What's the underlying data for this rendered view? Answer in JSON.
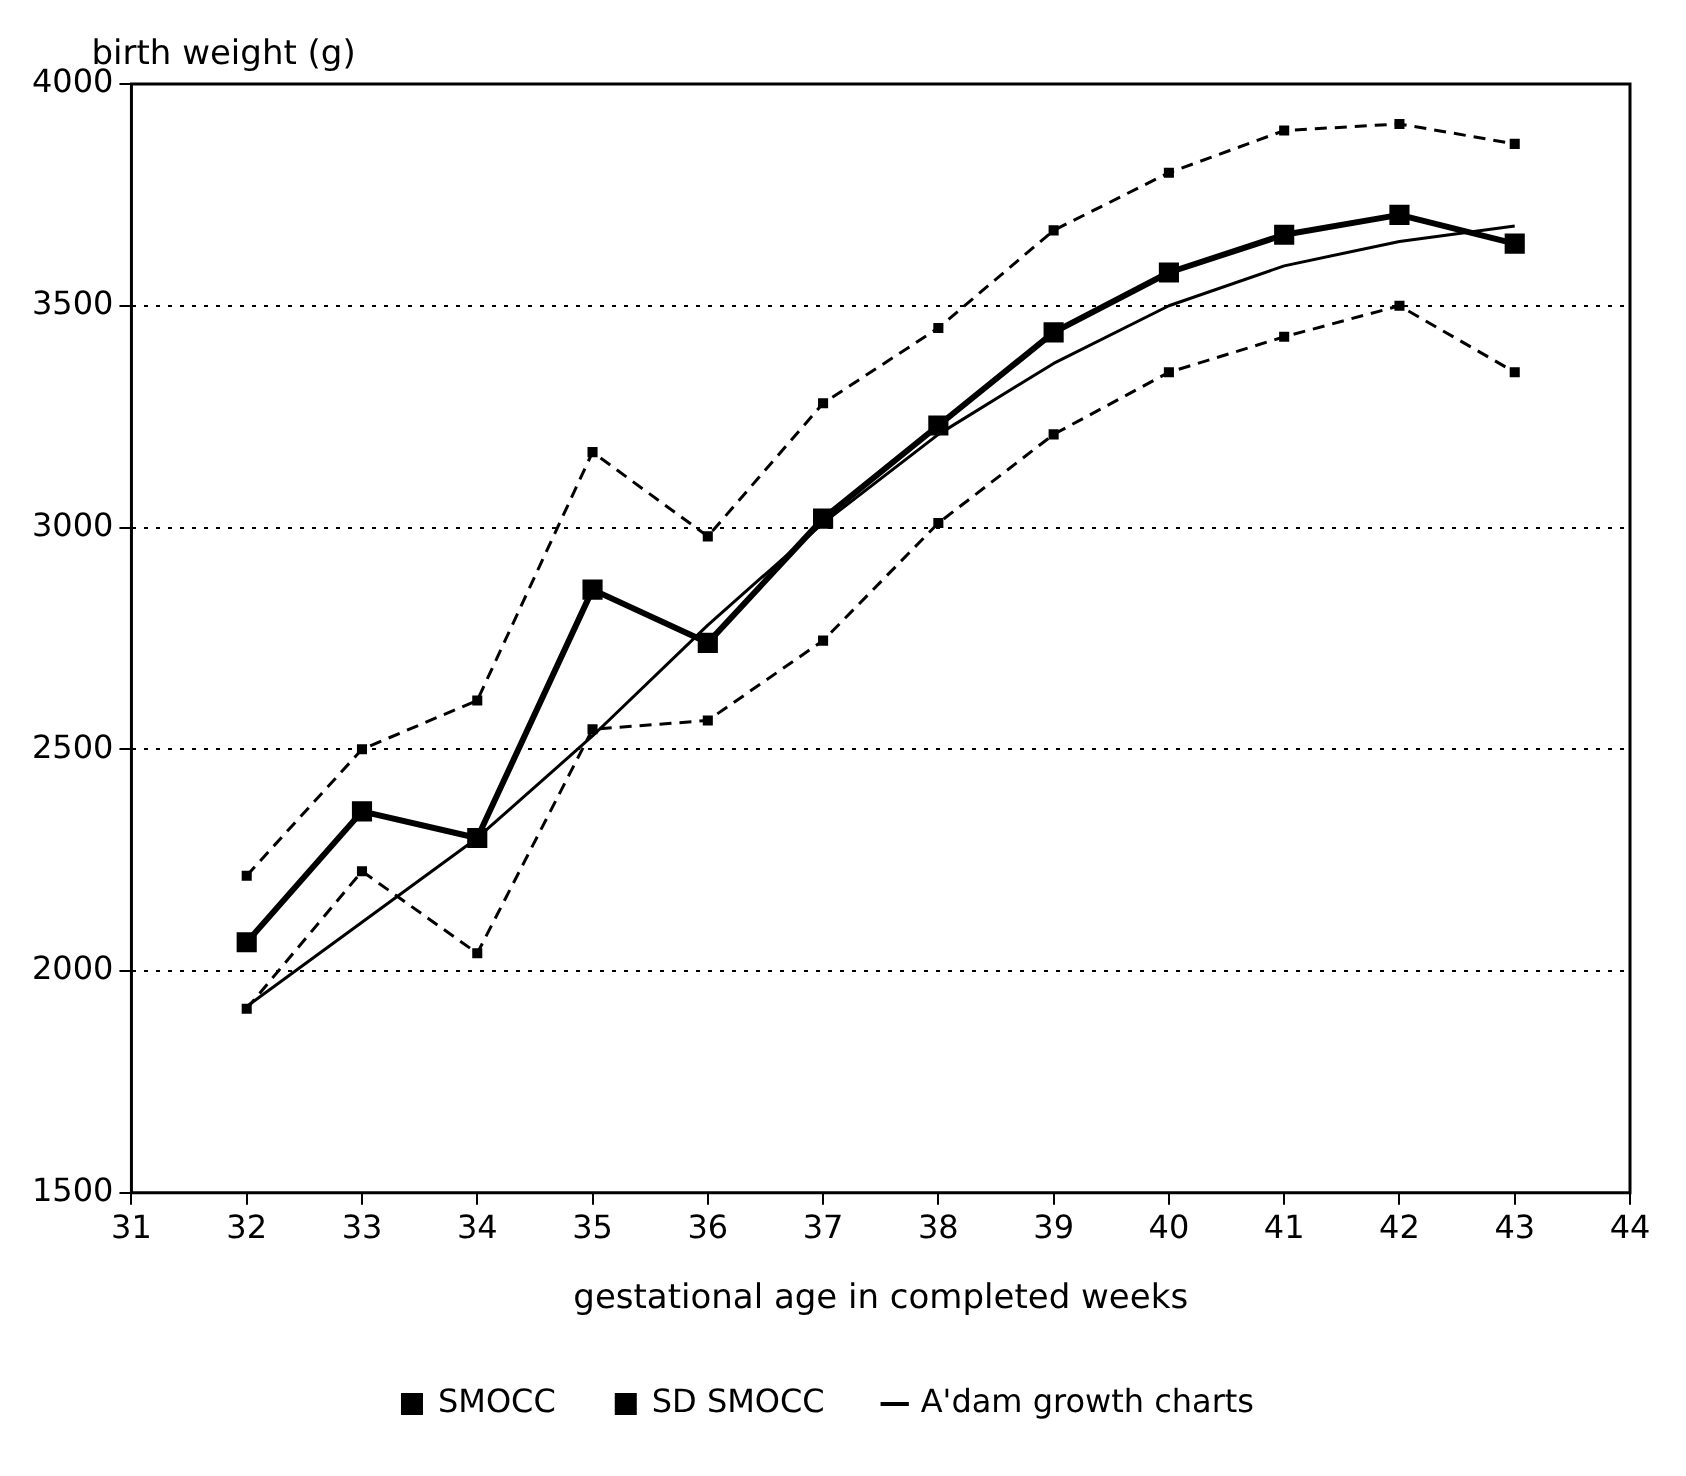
{
  "chart_data": {
    "type": "line",
    "ylabel": "birth weight (g)",
    "xlabel": "gestational age in completed weeks",
    "x": [
      32,
      33,
      34,
      35,
      36,
      37,
      38,
      39,
      40,
      41,
      42,
      43
    ],
    "xlim": [
      31,
      44
    ],
    "xticks": [
      31,
      32,
      33,
      34,
      35,
      36,
      37,
      38,
      39,
      40,
      41,
      42,
      43,
      44
    ],
    "ylim": [
      1500,
      4000
    ],
    "yticks": [
      1500,
      2000,
      2500,
      3000,
      3500,
      4000
    ],
    "grid": "y",
    "legend": "bottom",
    "series": [
      {
        "name": "SMOCC",
        "color": "#000000",
        "marker": "square",
        "line_style": "solid",
        "values": [
          2065,
          2360,
          2300,
          2860,
          2740,
          3020,
          3230,
          3440,
          3575,
          3660,
          3705,
          3640
        ]
      },
      {
        "name": "SD SMOCC",
        "color": "#000000",
        "marker": "square",
        "line_style": "dashed",
        "values": [
          2215,
          2500,
          2610,
          3170,
          2980,
          3280,
          3450,
          3670,
          3800,
          3895,
          3910,
          3865
        ]
      },
      {
        "color": "#000000",
        "marker": "square",
        "line_style": "dashed",
        "values": [
          1915,
          2225,
          2040,
          2545,
          2565,
          2745,
          3010,
          3210,
          3350,
          3430,
          3500,
          3350
        ]
      },
      {
        "name": "A'dam growth charts",
        "color": "#000000",
        "marker": "none",
        "line_style": "solid",
        "values": [
          1920,
          2110,
          2300,
          2530,
          2780,
          3010,
          3210,
          3370,
          3500,
          3590,
          3645,
          3680
        ]
      }
    ]
  }
}
